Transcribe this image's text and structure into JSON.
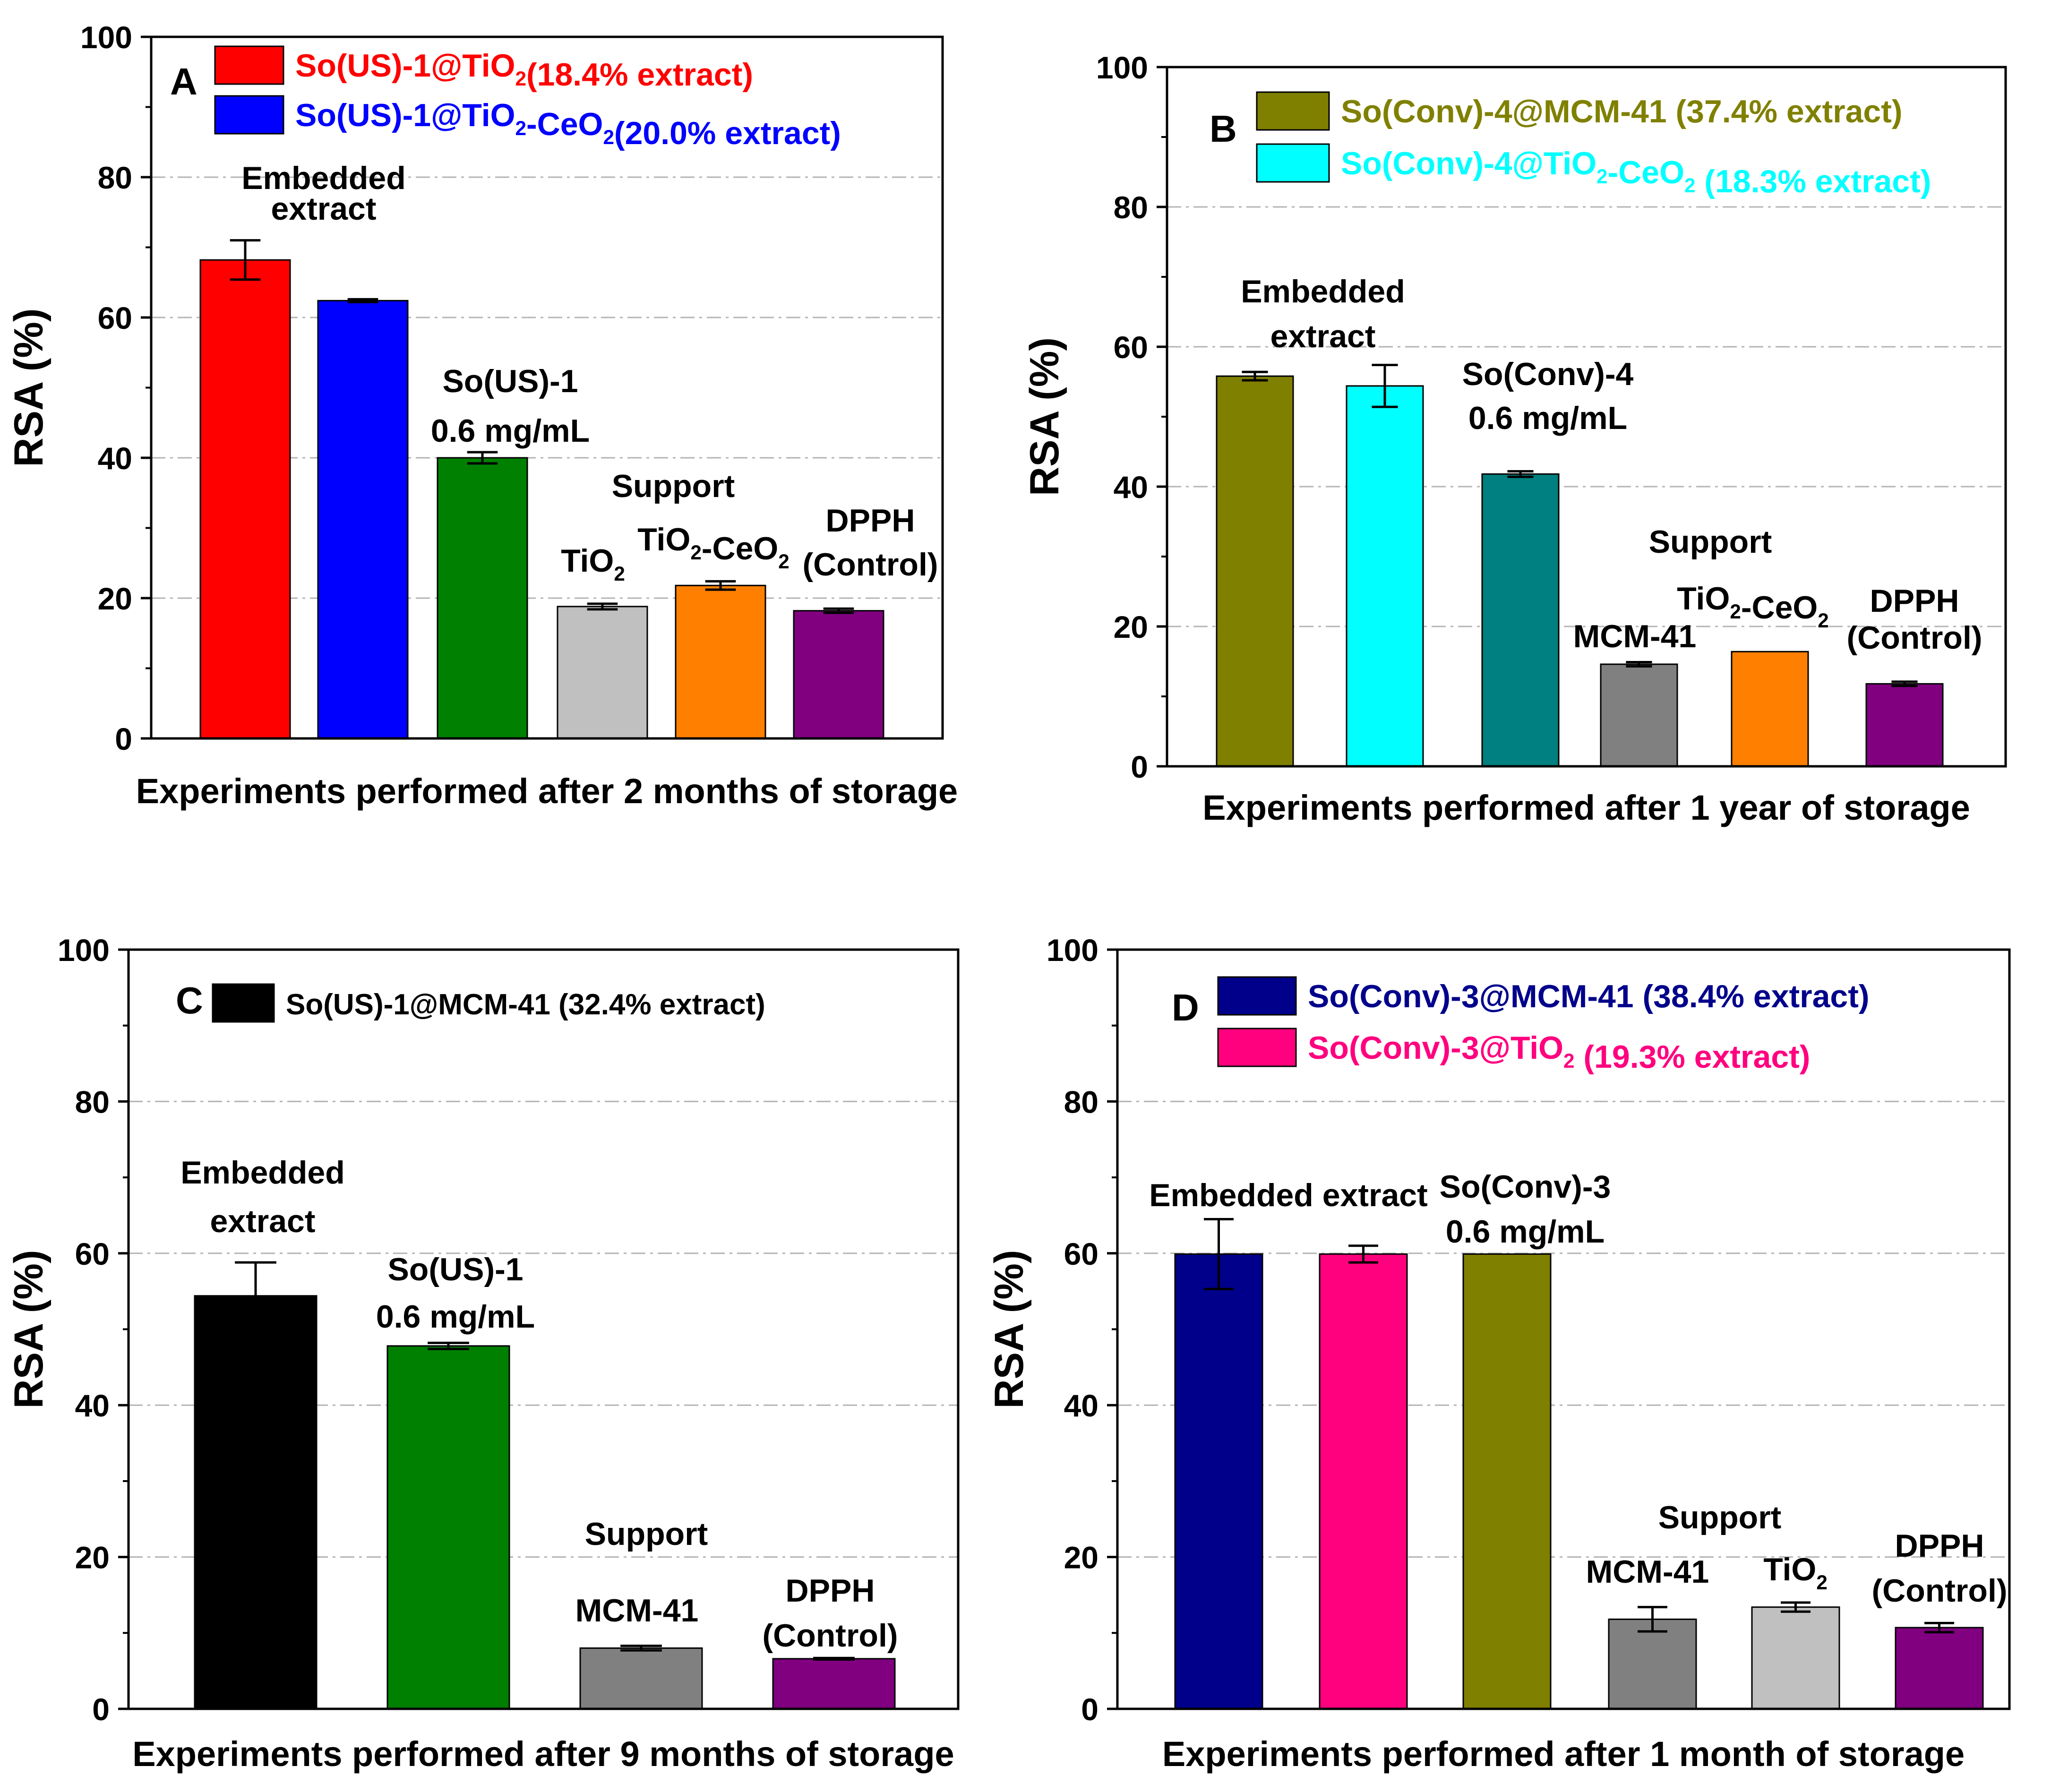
{
  "chart_data": [
    {
      "type": "bar",
      "panel_label": "A",
      "xlabel": "Experiments performed after 2 months of storage",
      "ylabel": "RSA (%)",
      "ylim": [
        0,
        100
      ],
      "yticks": [
        "0",
        "20",
        "40",
        "60",
        "80",
        "100"
      ],
      "grid": true,
      "legend_position": "top",
      "legend": [
        {
          "text": "So(US)-1@TiO",
          "sub": "2",
          "tail": "(18.4% extract)",
          "color": "#ff0000"
        },
        {
          "text": "So(US)-1@TiO",
          "sub": "2",
          "tail": "-CeO",
          "sub2": "2",
          "tail2": "(20.0% extract)",
          "color": "#0000ff"
        }
      ],
      "bars": [
        {
          "name": "So(US)-1@TiO2",
          "value": 68.2,
          "err": 2.8,
          "color": "#ff0000"
        },
        {
          "name": "So(US)-1@TiO2-CeO2",
          "value": 62.4,
          "err": 0.2,
          "color": "#0000ff"
        },
        {
          "name": "So(US)-1 0.6 mg/mL",
          "value": 40.0,
          "err": 0.8,
          "color": "#008000"
        },
        {
          "name": "TiO2",
          "value": 18.8,
          "err": 0.4,
          "color": "#c0c0c0"
        },
        {
          "name": "TiO2-CeO2",
          "value": 21.8,
          "err": 0.6,
          "color": "#ff8000"
        },
        {
          "name": "DPPH (Control)",
          "value": 18.2,
          "err": 0.3,
          "color": "#800080"
        }
      ],
      "annotations": [
        {
          "lines": [
            {
              "t": "Embedded"
            },
            {
              "t": "extract"
            }
          ]
        },
        {
          "lines": [
            {
              "t": "So(US)-1"
            },
            {
              "t": "0.6 mg/mL"
            }
          ]
        },
        {
          "lines": [
            {
              "t": "Support"
            }
          ]
        },
        {
          "lines": [
            {
              "t": "TiO",
              "sub": "2"
            }
          ]
        },
        {
          "lines": [
            {
              "t": "TiO",
              "sub": "2",
              "tail": "-CeO",
              "sub2": "2"
            }
          ]
        },
        {
          "lines": [
            {
              "t": "DPPH"
            },
            {
              "t": "(Control)"
            }
          ]
        }
      ]
    },
    {
      "type": "bar",
      "panel_label": "B",
      "xlabel": "Experiments performed after 1 year of storage",
      "ylabel": "RSA (%)",
      "ylim": [
        0,
        100
      ],
      "yticks": [
        "0",
        "20",
        "40",
        "60",
        "80",
        "100"
      ],
      "grid": true,
      "legend_position": "top",
      "legend": [
        {
          "text": "So(Conv)-4@MCM-41 (37.4% extract)",
          "color": "#808000"
        },
        {
          "text": "So(Conv)-4@TiO",
          "sub": "2",
          "tail": "-CeO",
          "sub2": "2",
          "tail2": " (18.3% extract)",
          "color": "#00ffff"
        }
      ],
      "bars": [
        {
          "name": "So(Conv)-4@MCM-41",
          "value": 55.8,
          "err": 0.6,
          "color": "#808000"
        },
        {
          "name": "So(Conv)-4@TiO2-CeO2",
          "value": 54.4,
          "err": 3.0,
          "color": "#00ffff"
        },
        {
          "name": "So(Conv)-4 0.6 mg/mL",
          "value": 41.8,
          "err": 0.4,
          "color": "#008080"
        },
        {
          "name": "MCM-41",
          "value": 14.6,
          "err": 0.3,
          "color": "#808080"
        },
        {
          "name": "TiO2-CeO2",
          "value": 16.4,
          "err": 0.0,
          "color": "#ff8000"
        },
        {
          "name": "DPPH (Control)",
          "value": 11.8,
          "err": 0.3,
          "color": "#800080"
        }
      ],
      "annotations": [
        {
          "lines": [
            {
              "t": "Embedded"
            },
            {
              "t": "extract"
            }
          ]
        },
        {
          "lines": [
            {
              "t": "So(Conv)-4"
            },
            {
              "t": "0.6 mg/mL"
            }
          ]
        },
        {
          "lines": [
            {
              "t": "Support"
            }
          ]
        },
        {
          "lines": [
            {
              "t": "MCM-41"
            }
          ]
        },
        {
          "lines": [
            {
              "t": "TiO",
              "sub": "2",
              "tail": "-CeO",
              "sub2": "2"
            }
          ]
        },
        {
          "lines": [
            {
              "t": "DPPH"
            },
            {
              "t": "(Control)"
            }
          ]
        }
      ]
    },
    {
      "type": "bar",
      "panel_label": "C",
      "xlabel": "Experiments performed after 9 months of storage",
      "ylabel": "RSA (%)",
      "ylim": [
        0,
        100
      ],
      "yticks": [
        "0",
        "20",
        "40",
        "60",
        "80",
        "100"
      ],
      "grid": true,
      "legend_position": "top",
      "legend": [
        {
          "text": "So(US)-1@MCM-41 (32.4% extract)",
          "color": "#000000",
          "text_color": "#000000"
        }
      ],
      "bars": [
        {
          "name": "So(US)-1@MCM-41",
          "value": 54.4,
          "err": 4.4,
          "color": "#000000"
        },
        {
          "name": "So(US)-1 0.6 mg/mL",
          "value": 47.8,
          "err": 0.4,
          "color": "#008000"
        },
        {
          "name": "MCM-41",
          "value": 8.0,
          "err": 0.3,
          "color": "#808080"
        },
        {
          "name": "DPPH (Control)",
          "value": 6.6,
          "err": 0.1,
          "color": "#800080"
        }
      ],
      "annotations": [
        {
          "lines": [
            {
              "t": "Embedded"
            },
            {
              "t": "extract"
            }
          ]
        },
        {
          "lines": [
            {
              "t": "So(US)-1"
            },
            {
              "t": "0.6 mg/mL"
            }
          ]
        },
        {
          "lines": [
            {
              "t": "Support"
            }
          ]
        },
        {
          "lines": [
            {
              "t": "MCM-41"
            }
          ]
        },
        {
          "lines": [
            {
              "t": "DPPH"
            },
            {
              "t": "(Control)"
            }
          ]
        }
      ]
    },
    {
      "type": "bar",
      "panel_label": "D",
      "xlabel": "Experiments performed after 1 month of storage",
      "ylabel": "RSA (%)",
      "ylim": [
        0,
        100
      ],
      "yticks": [
        "0",
        "20",
        "40",
        "60",
        "80",
        "100"
      ],
      "grid": true,
      "legend_position": "top",
      "legend": [
        {
          "text": "So(Conv)-3@MCM-41 (38.4% extract)",
          "color": "#00008b"
        },
        {
          "text": "So(Conv)-3@TiO",
          "sub": "2",
          "tail": " (19.3% extract)",
          "color": "#ff007f"
        }
      ],
      "bars": [
        {
          "name": "So(Conv)-3@MCM-41",
          "value": 59.9,
          "err": 4.6,
          "color": "#00008b"
        },
        {
          "name": "So(Conv)-3@TiO2",
          "value": 59.9,
          "err": 1.1,
          "color": "#ff007f"
        },
        {
          "name": "So(Conv)-3 0.6 mg/mL",
          "value": 59.9,
          "err": 0.0,
          "color": "#808000"
        },
        {
          "name": "MCM-41",
          "value": 11.8,
          "err": 1.6,
          "color": "#808080"
        },
        {
          "name": "TiO2",
          "value": 13.4,
          "err": 0.6,
          "color": "#c0c0c0"
        },
        {
          "name": "DPPH (Control)",
          "value": 10.7,
          "err": 0.6,
          "color": "#800080"
        }
      ],
      "annotations": [
        {
          "lines": [
            {
              "t": "Embedded extract"
            }
          ]
        },
        {
          "lines": [
            {
              "t": "So(Conv)-3"
            },
            {
              "t": "0.6 mg/mL"
            }
          ]
        },
        {
          "lines": [
            {
              "t": "Support"
            }
          ]
        },
        {
          "lines": [
            {
              "t": "MCM-41"
            }
          ]
        },
        {
          "lines": [
            {
              "t": "TiO",
              "sub": "2"
            }
          ]
        },
        {
          "lines": [
            {
              "t": "DPPH"
            },
            {
              "t": "(Control)"
            }
          ]
        }
      ]
    }
  ]
}
